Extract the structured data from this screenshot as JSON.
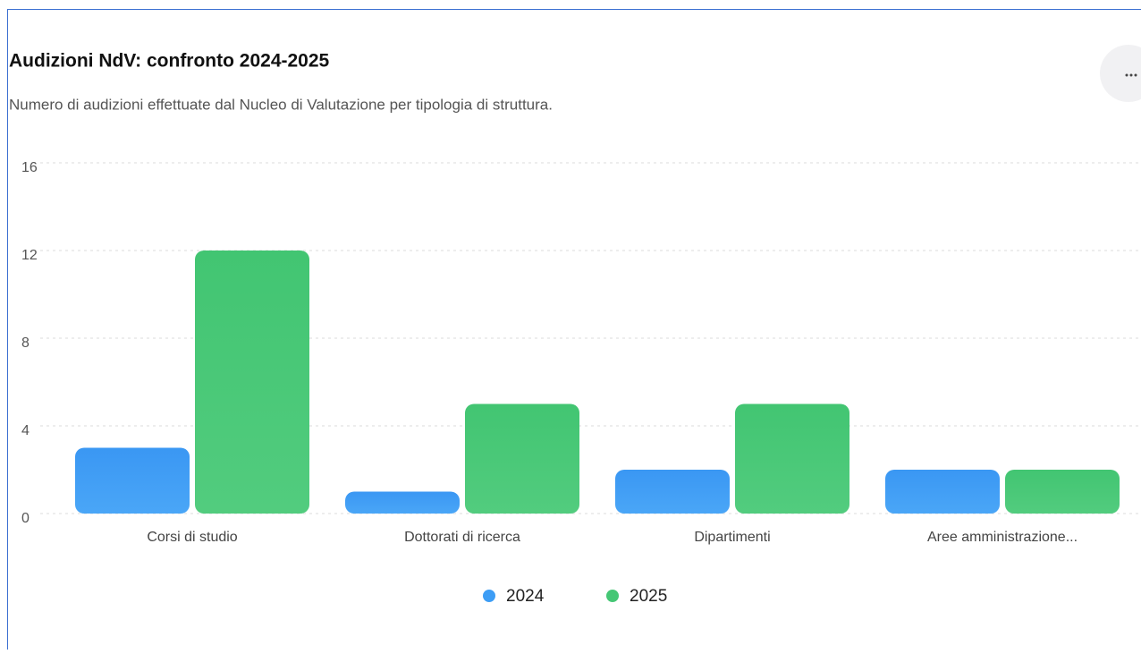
{
  "chart_data": {
    "type": "bar",
    "title": "Audizioni NdV: confronto 2024-2025",
    "subtitle": "Numero di audizioni effettuate dal Nucleo di Valutazione per tipologia di struttura.",
    "categories": [
      "Corsi di studio",
      "Dottorati di ricerca",
      "Dipartimenti",
      "Aree amministrazione..."
    ],
    "series": [
      {
        "name": "2024",
        "color": "#3d9df5",
        "values": [
          3,
          1,
          2,
          2
        ]
      },
      {
        "name": "2025",
        "color": "#45c775",
        "values": [
          12,
          5,
          5,
          2
        ]
      }
    ],
    "ylim": [
      0,
      16
    ],
    "yticks": [
      0,
      4,
      8,
      12,
      16
    ],
    "grid": true,
    "legend": "bottom"
  }
}
